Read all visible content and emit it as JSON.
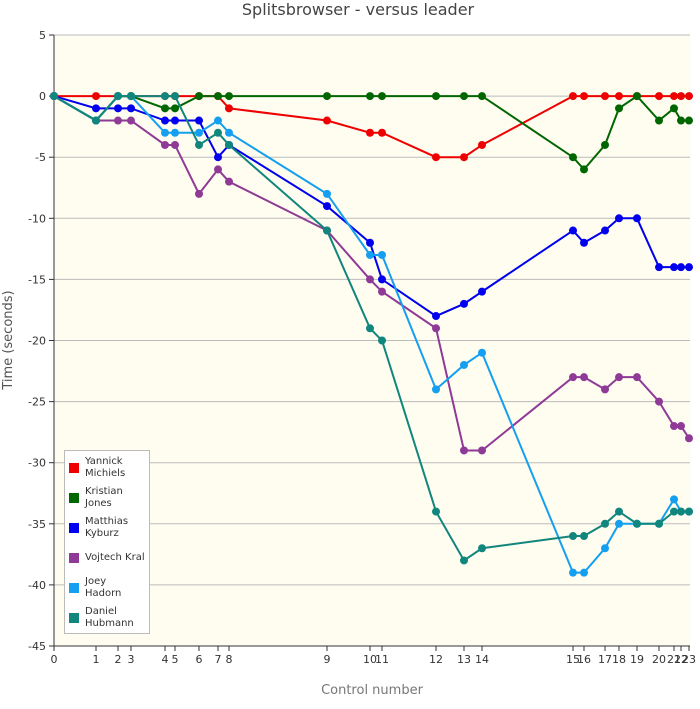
{
  "chart_data": {
    "type": "line",
    "title": "Splitsbrowser - versus leader",
    "x_label": "Control number",
    "y_label": "Time (seconds)",
    "x": [
      0,
      42,
      64,
      77,
      111,
      121,
      145,
      164,
      175,
      273,
      316,
      328,
      382,
      410,
      428,
      519,
      530,
      551,
      565,
      583,
      605,
      620,
      627,
      635
    ],
    "xlim": [
      0,
      636
    ],
    "xticks": [
      {
        "value": 0,
        "label": "0"
      },
      {
        "value": 42,
        "label": "1"
      },
      {
        "value": 64,
        "label": "2"
      },
      {
        "value": 77,
        "label": "3"
      },
      {
        "value": 111,
        "label": "4"
      },
      {
        "value": 121,
        "label": "5"
      },
      {
        "value": 145,
        "label": "6"
      },
      {
        "value": 164,
        "label": "7"
      },
      {
        "value": 175,
        "label": "8"
      },
      {
        "value": 273,
        "label": "9"
      },
      {
        "value": 316,
        "label": "10"
      },
      {
        "value": 328,
        "label": "11"
      },
      {
        "value": 382,
        "label": "12"
      },
      {
        "value": 410,
        "label": "13"
      },
      {
        "value": 428,
        "label": "14"
      },
      {
        "value": 519,
        "label": "15"
      },
      {
        "value": 530,
        "label": "16"
      },
      {
        "value": 551,
        "label": "17"
      },
      {
        "value": 565,
        "label": "18"
      },
      {
        "value": 583,
        "label": "19"
      },
      {
        "value": 605,
        "label": "20"
      },
      {
        "value": 620,
        "label": "21"
      },
      {
        "value": 627,
        "label": "22"
      },
      {
        "value": 635,
        "label": "23"
      }
    ],
    "ylim": [
      -45,
      5
    ],
    "yticks": [
      -45,
      -40,
      -35,
      -30,
      -25,
      -20,
      -15,
      -10,
      -5,
      0,
      5
    ],
    "grid": true,
    "legend": "bottom-left",
    "series": [
      {
        "name": "Yannick Michiels",
        "color": "#ee0000",
        "values": [
          0,
          0,
          0,
          0,
          0,
          0,
          0,
          0,
          -1,
          -2,
          -3,
          -3,
          -5,
          -5,
          -4,
          0,
          0,
          0,
          0,
          0,
          0,
          0,
          0,
          0
        ]
      },
      {
        "name": "Kristian Jones",
        "color": "#006600",
        "values": [
          0,
          -2,
          0,
          0,
          -1,
          -1,
          0,
          0,
          0,
          0,
          0,
          0,
          0,
          0,
          0,
          -5,
          -6,
          -4,
          -1,
          0,
          -2,
          -1,
          -2,
          -2
        ]
      },
      {
        "name": "Matthias Kyburz",
        "color": "#0000ee",
        "values": [
          0,
          -1,
          -1,
          -1,
          -2,
          -2,
          -2,
          -5,
          -4,
          -9,
          -12,
          -15,
          -18,
          -17,
          -16,
          -11,
          -12,
          -11,
          -10,
          -10,
          -14,
          -14,
          -14,
          -14
        ]
      },
      {
        "name": "Vojtech Kral",
        "color": "#8e3a96",
        "values": [
          0,
          -2,
          -2,
          -2,
          -4,
          -4,
          -8,
          -6,
          -7,
          -11,
          -15,
          -16,
          -19,
          -29,
          -29,
          -23,
          -23,
          -24,
          -23,
          -23,
          -25,
          -27,
          -27,
          -28
        ]
      },
      {
        "name": "Joey Hadorn",
        "color": "#159ff0",
        "values": [
          0,
          -2,
          0,
          0,
          -3,
          -3,
          -3,
          -2,
          -3,
          -8,
          -13,
          -13,
          -24,
          -22,
          -21,
          -39,
          -39,
          -37,
          -35,
          -35,
          -35,
          -33,
          -34,
          -34
        ]
      },
      {
        "name": "Daniel Hubmann",
        "color": "#11867d",
        "values": [
          0,
          -2,
          0,
          0,
          0,
          0,
          -4,
          -3,
          -4,
          -11,
          -19,
          -20,
          -34,
          -38,
          -37,
          -36,
          -36,
          -35,
          -34,
          -35,
          -35,
          -34,
          -34,
          -34
        ]
      }
    ]
  }
}
